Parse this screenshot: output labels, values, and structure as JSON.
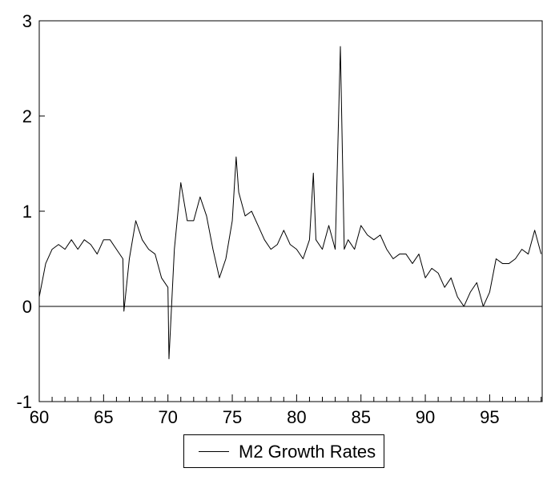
{
  "chart_data": {
    "type": "line",
    "title": "",
    "xlabel": "",
    "ylabel": "",
    "xlim": [
      60,
      99.083
    ],
    "ylim": [
      -1,
      3
    ],
    "xticks": [
      60,
      65,
      70,
      75,
      80,
      85,
      90,
      95
    ],
    "x_tick_labels": [
      "60",
      "65",
      "70",
      "75",
      "80",
      "85",
      "90",
      "95"
    ],
    "yticks": [
      -1,
      0,
      1,
      2,
      3
    ],
    "y_tick_labels": [
      "-1",
      "0",
      "1",
      "2",
      "3"
    ],
    "zero_line": true,
    "grid": false,
    "legend_position": "bottom-center",
    "series": [
      {
        "name": "M2 Growth Rates",
        "color": "#000000",
        "x": [
          60.0,
          60.5,
          61.0,
          61.5,
          62.0,
          62.5,
          63.0,
          63.5,
          64.0,
          64.5,
          65.0,
          65.5,
          66.0,
          66.5,
          66.58,
          67.0,
          67.5,
          68.0,
          68.5,
          69.0,
          69.5,
          70.0,
          70.08,
          70.5,
          71.0,
          71.5,
          72.0,
          72.5,
          73.0,
          73.5,
          74.0,
          74.5,
          75.0,
          75.3,
          75.5,
          76.0,
          76.5,
          77.0,
          77.5,
          78.0,
          78.5,
          79.0,
          79.5,
          80.0,
          80.5,
          81.0,
          81.3,
          81.5,
          82.0,
          82.5,
          83.0,
          83.4,
          83.7,
          84.0,
          84.5,
          85.0,
          85.5,
          86.0,
          86.5,
          87.0,
          87.5,
          88.0,
          88.5,
          89.0,
          89.5,
          90.0,
          90.5,
          91.0,
          91.5,
          92.0,
          92.5,
          93.0,
          93.5,
          94.0,
          94.5,
          95.0,
          95.5,
          96.0,
          96.5,
          97.0,
          97.5,
          98.0,
          98.5,
          99.0
        ],
        "values": [
          0.1,
          0.45,
          0.6,
          0.65,
          0.6,
          0.7,
          0.6,
          0.7,
          0.65,
          0.55,
          0.7,
          0.7,
          0.6,
          0.5,
          -0.05,
          0.5,
          0.9,
          0.7,
          0.6,
          0.55,
          0.3,
          0.2,
          -0.55,
          0.6,
          1.3,
          0.9,
          0.9,
          1.15,
          0.95,
          0.6,
          0.3,
          0.5,
          0.9,
          1.57,
          1.2,
          0.95,
          1.0,
          0.85,
          0.7,
          0.6,
          0.65,
          0.8,
          0.65,
          0.6,
          0.5,
          0.7,
          1.4,
          0.7,
          0.6,
          0.85,
          0.6,
          2.73,
          0.6,
          0.7,
          0.6,
          0.85,
          0.75,
          0.7,
          0.75,
          0.6,
          0.5,
          0.55,
          0.55,
          0.45,
          0.55,
          0.3,
          0.4,
          0.35,
          0.2,
          0.3,
          0.1,
          0.0,
          0.15,
          0.25,
          0.0,
          0.15,
          0.5,
          0.45,
          0.45,
          0.5,
          0.6,
          0.55,
          0.8,
          0.55
        ]
      }
    ]
  }
}
